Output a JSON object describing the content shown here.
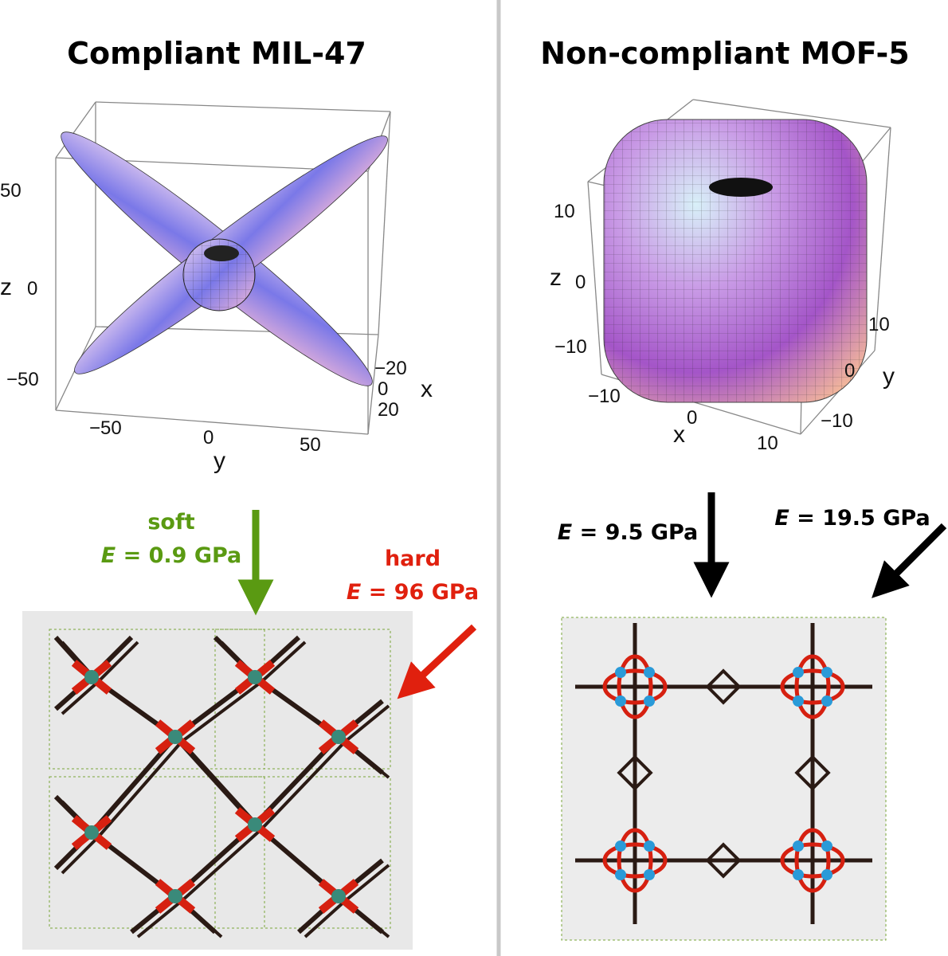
{
  "panels": [
    {
      "title": "Compliant MIL-47",
      "plot": {
        "z_label": "z",
        "z_ticks": [
          "50",
          "0",
          "−50"
        ],
        "y_label": "y",
        "y_ticks": [
          "−50",
          "0",
          "50"
        ],
        "x_label": "x",
        "x_ticks": [
          "−20",
          "0",
          "20"
        ]
      },
      "arrows": [
        {
          "word": "soft",
          "variable": "E",
          "rest": " = 0.9 GPa"
        },
        {
          "word": "hard",
          "variable": "E",
          "rest": " = 96 GPa"
        }
      ]
    },
    {
      "title": "Non-compliant MOF-5",
      "plot": {
        "z_label": "z",
        "z_ticks": [
          "10",
          "0",
          "−10"
        ],
        "x_label": "x",
        "x_ticks": [
          "−10",
          "0",
          "10"
        ],
        "y_label": "y",
        "y_ticks": [
          "10",
          "0",
          "−10"
        ]
      },
      "arrows": [
        {
          "variable": "E",
          "rest": " = 9.5 GPa"
        },
        {
          "variable": "E",
          "rest": " = 19.5 GPa"
        }
      ]
    }
  ]
}
